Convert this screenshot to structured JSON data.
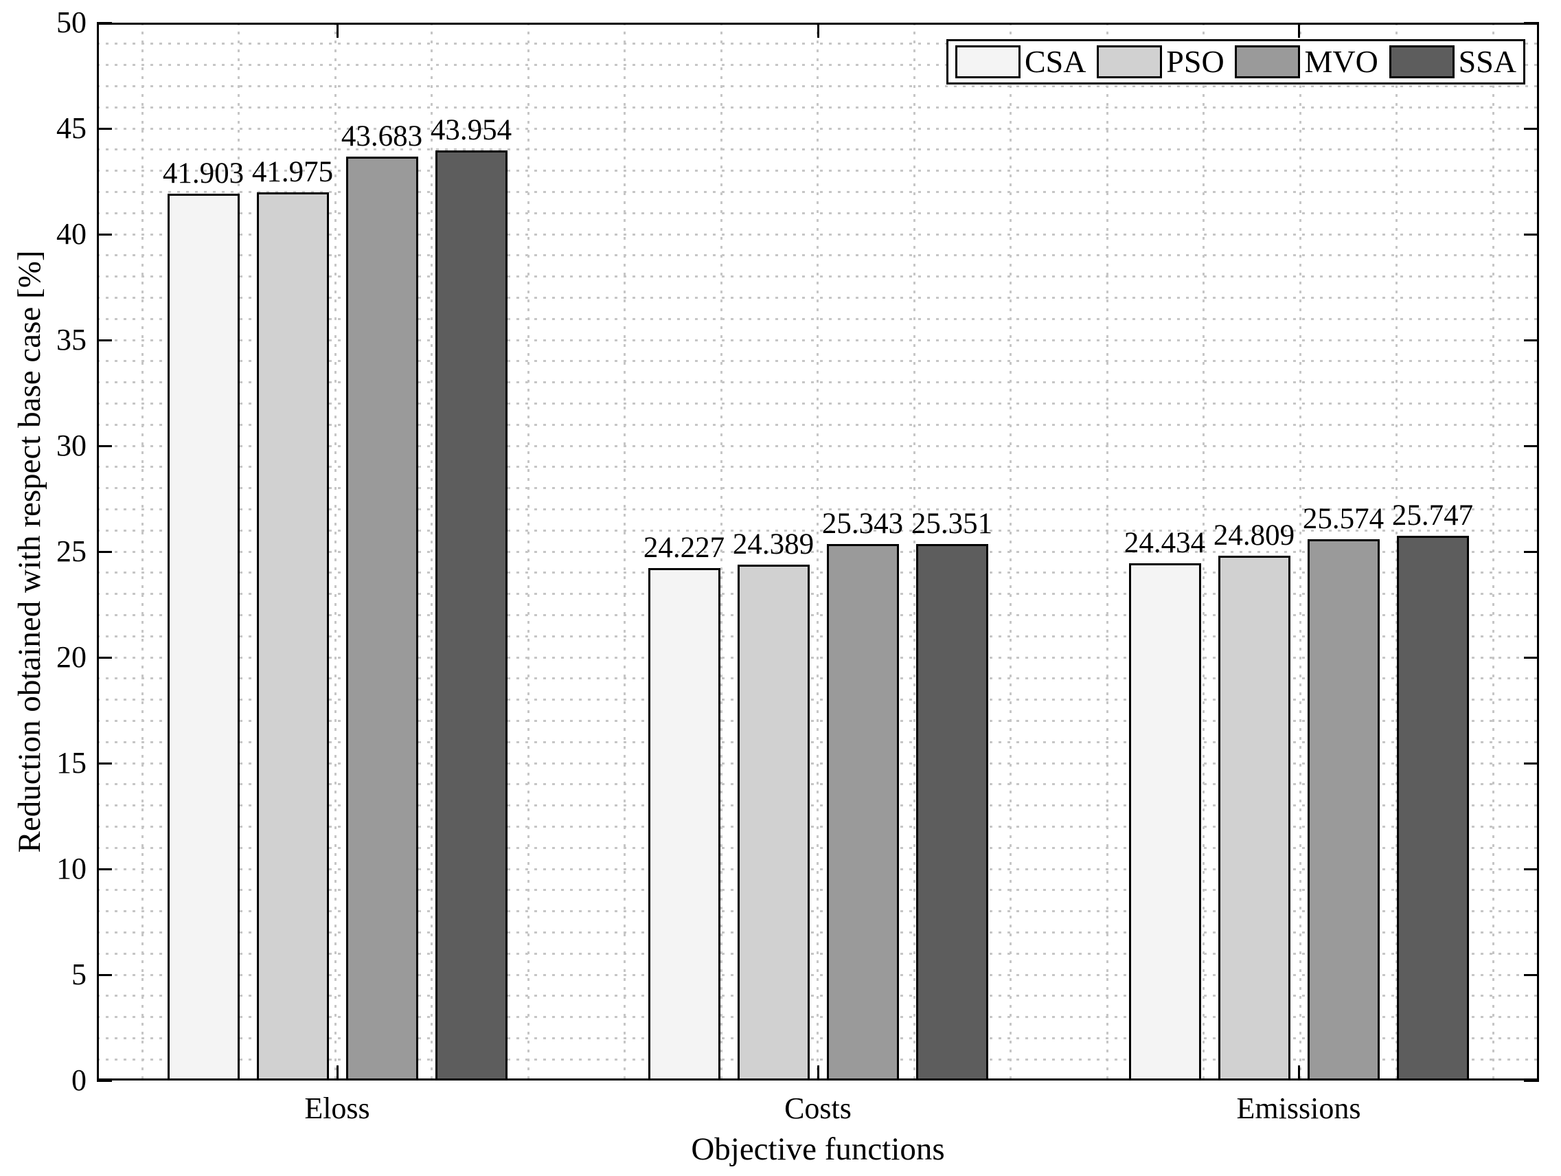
{
  "figure": {
    "background": "#ffffff",
    "text_color": "#000000"
  },
  "chart_data": {
    "type": "bar",
    "title": "",
    "categories": [
      "Eloss",
      "Costs",
      "Emissions"
    ],
    "series": [
      {
        "name": "CSA",
        "color": "#f4f4f4",
        "values": [
          41.903,
          24.227,
          24.434
        ]
      },
      {
        "name": "PSO",
        "color": "#d1d1d1",
        "values": [
          41.975,
          24.389,
          24.809
        ]
      },
      {
        "name": "MVO",
        "color": "#9a9a9a",
        "values": [
          43.683,
          25.343,
          25.574
        ]
      },
      {
        "name": "SSA",
        "color": "#5d5d5d",
        "values": [
          43.954,
          25.351,
          25.747
        ]
      }
    ],
    "bar_value_labels": {
      "Eloss": [
        "41.903",
        "41.975",
        "43.683",
        "43.954"
      ],
      "Costs": [
        "24.227",
        "24.389",
        "25.343",
        "25.351"
      ],
      "Emissions": [
        "24.434",
        "24.809",
        "25.574",
        "25.747"
      ]
    },
    "xlabel": "Objective functions",
    "ylabel": "Reduction obtained with respect base case [%]",
    "ylim": [
      0,
      50
    ],
    "yticks": [
      0,
      5,
      10,
      15,
      20,
      25,
      30,
      35,
      40,
      45,
      50
    ],
    "y_minor_step": 1,
    "grid": "dotted",
    "grid_color": "#c6c6c6",
    "bar_edge_color": "#000000",
    "axis_color": "#000000",
    "legend": {
      "position": "top-right",
      "orientation": "horizontal",
      "entries": [
        "CSA",
        "PSO",
        "MVO",
        "SSA"
      ]
    }
  }
}
